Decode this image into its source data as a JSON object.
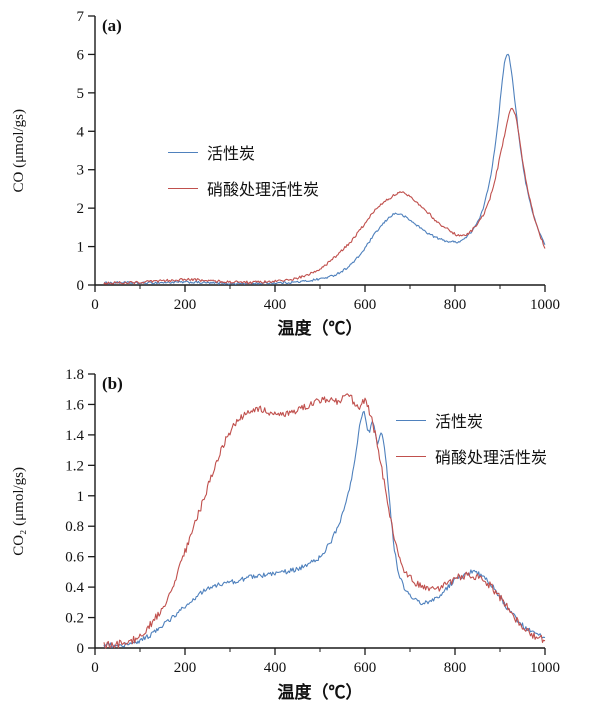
{
  "chart_data": [
    {
      "type": "line",
      "panel_label": "(a)",
      "xlabel": "温度（℃）",
      "ylabel": "CO (μmol/gs)",
      "xlim": [
        0,
        1000
      ],
      "ylim": [
        0,
        7
      ],
      "xticks": [
        0,
        200,
        400,
        600,
        800,
        1000
      ],
      "yticks": [
        0,
        1,
        2,
        3,
        4,
        5,
        6,
        7
      ],
      "x_minor_step": 100,
      "grid": false,
      "legend_position": "left-center",
      "series": [
        {
          "name": "活性炭",
          "color": "#4f81bd",
          "noise": 0.03,
          "points": [
            [
              20,
              0.05
            ],
            [
              60,
              0.06
            ],
            [
              100,
              0.05
            ],
            [
              140,
              0.06
            ],
            [
              180,
              0.07
            ],
            [
              220,
              0.07
            ],
            [
              260,
              0.05
            ],
            [
              300,
              0.04
            ],
            [
              340,
              0.04
            ],
            [
              380,
              0.05
            ],
            [
              420,
              0.06
            ],
            [
              460,
              0.09
            ],
            [
              500,
              0.16
            ],
            [
              530,
              0.25
            ],
            [
              560,
              0.45
            ],
            [
              590,
              0.8
            ],
            [
              620,
              1.3
            ],
            [
              645,
              1.65
            ],
            [
              665,
              1.85
            ],
            [
              685,
              1.8
            ],
            [
              710,
              1.6
            ],
            [
              740,
              1.35
            ],
            [
              770,
              1.18
            ],
            [
              800,
              1.12
            ],
            [
              820,
              1.2
            ],
            [
              840,
              1.45
            ],
            [
              860,
              1.9
            ],
            [
              880,
              2.9
            ],
            [
              895,
              4.2
            ],
            [
              905,
              5.3
            ],
            [
              912,
              5.9
            ],
            [
              918,
              6.0
            ],
            [
              925,
              5.6
            ],
            [
              935,
              4.6
            ],
            [
              945,
              3.6
            ],
            [
              955,
              2.8
            ],
            [
              970,
              2.0
            ],
            [
              985,
              1.45
            ],
            [
              1000,
              1.05
            ]
          ]
        },
        {
          "name": "硝酸处理活性炭",
          "color": "#c0504d",
          "noise": 0.035,
          "points": [
            [
              20,
              0.05
            ],
            [
              60,
              0.06
            ],
            [
              100,
              0.07
            ],
            [
              140,
              0.1
            ],
            [
              180,
              0.13
            ],
            [
              210,
              0.14
            ],
            [
              240,
              0.12
            ],
            [
              270,
              0.1
            ],
            [
              300,
              0.08
            ],
            [
              340,
              0.07
            ],
            [
              380,
              0.08
            ],
            [
              420,
              0.12
            ],
            [
              450,
              0.18
            ],
            [
              480,
              0.3
            ],
            [
              510,
              0.5
            ],
            [
              540,
              0.8
            ],
            [
              570,
              1.15
            ],
            [
              600,
              1.6
            ],
            [
              630,
              2.05
            ],
            [
              660,
              2.3
            ],
            [
              680,
              2.4
            ],
            [
              700,
              2.3
            ],
            [
              730,
              2.0
            ],
            [
              760,
              1.65
            ],
            [
              790,
              1.4
            ],
            [
              810,
              1.28
            ],
            [
              830,
              1.35
            ],
            [
              850,
              1.6
            ],
            [
              870,
              2.0
            ],
            [
              890,
              2.8
            ],
            [
              910,
              3.9
            ],
            [
              922,
              4.5
            ],
            [
              932,
              4.5
            ],
            [
              942,
              3.9
            ],
            [
              952,
              3.1
            ],
            [
              965,
              2.3
            ],
            [
              980,
              1.6
            ],
            [
              1000,
              0.95
            ]
          ]
        }
      ]
    },
    {
      "type": "line",
      "panel_label": "(b)",
      "xlabel": "温度（℃）",
      "ylabel": "CO₂ (μmol/gs)",
      "xlim": [
        0,
        1000
      ],
      "ylim": [
        0,
        1.8
      ],
      "xticks": [
        0,
        200,
        400,
        600,
        800,
        1000
      ],
      "yticks": [
        0,
        0.2,
        0.4,
        0.6,
        0.8,
        1,
        1.2,
        1.4,
        1.6,
        1.8
      ],
      "x_minor_step": 100,
      "grid": false,
      "legend_position": "right-upper",
      "series": [
        {
          "name": "活性炭",
          "color": "#4f81bd",
          "noise": 0.016,
          "points": [
            [
              20,
              0.02
            ],
            [
              60,
              0.02
            ],
            [
              100,
              0.05
            ],
            [
              130,
              0.1
            ],
            [
              160,
              0.17
            ],
            [
              200,
              0.27
            ],
            [
              230,
              0.35
            ],
            [
              260,
              0.4
            ],
            [
              300,
              0.43
            ],
            [
              340,
              0.46
            ],
            [
              380,
              0.48
            ],
            [
              420,
              0.5
            ],
            [
              460,
              0.53
            ],
            [
              500,
              0.6
            ],
            [
              520,
              0.68
            ],
            [
              540,
              0.8
            ],
            [
              560,
              0.98
            ],
            [
              575,
              1.2
            ],
            [
              588,
              1.45
            ],
            [
              598,
              1.55
            ],
            [
              608,
              1.42
            ],
            [
              618,
              1.48
            ],
            [
              628,
              1.35
            ],
            [
              638,
              1.4
            ],
            [
              648,
              1.18
            ],
            [
              658,
              0.85
            ],
            [
              668,
              0.6
            ],
            [
              680,
              0.45
            ],
            [
              695,
              0.36
            ],
            [
              715,
              0.31
            ],
            [
              740,
              0.3
            ],
            [
              765,
              0.34
            ],
            [
              790,
              0.42
            ],
            [
              815,
              0.47
            ],
            [
              840,
              0.5
            ],
            [
              860,
              0.47
            ],
            [
              880,
              0.42
            ],
            [
              900,
              0.33
            ],
            [
              925,
              0.23
            ],
            [
              950,
              0.15
            ],
            [
              975,
              0.1
            ],
            [
              1000,
              0.07
            ]
          ]
        },
        {
          "name": "硝酸处理活性炭",
          "color": "#c0504d",
          "noise": 0.025,
          "points": [
            [
              20,
              0.02
            ],
            [
              60,
              0.03
            ],
            [
              100,
              0.08
            ],
            [
              130,
              0.18
            ],
            [
              160,
              0.32
            ],
            [
              190,
              0.55
            ],
            [
              220,
              0.8
            ],
            [
              250,
              1.05
            ],
            [
              280,
              1.3
            ],
            [
              300,
              1.42
            ],
            [
              320,
              1.5
            ],
            [
              340,
              1.55
            ],
            [
              365,
              1.57
            ],
            [
              390,
              1.55
            ],
            [
              420,
              1.53
            ],
            [
              450,
              1.57
            ],
            [
              480,
              1.6
            ],
            [
              510,
              1.63
            ],
            [
              540,
              1.62
            ],
            [
              565,
              1.65
            ],
            [
              585,
              1.58
            ],
            [
              600,
              1.62
            ],
            [
              615,
              1.5
            ],
            [
              630,
              1.3
            ],
            [
              645,
              1.05
            ],
            [
              660,
              0.8
            ],
            [
              675,
              0.6
            ],
            [
              690,
              0.5
            ],
            [
              710,
              0.43
            ],
            [
              730,
              0.4
            ],
            [
              755,
              0.38
            ],
            [
              780,
              0.42
            ],
            [
              805,
              0.46
            ],
            [
              830,
              0.48
            ],
            [
              855,
              0.46
            ],
            [
              875,
              0.42
            ],
            [
              895,
              0.35
            ],
            [
              915,
              0.27
            ],
            [
              935,
              0.19
            ],
            [
              955,
              0.12
            ],
            [
              978,
              0.08
            ],
            [
              1000,
              0.05
            ]
          ]
        }
      ]
    }
  ]
}
